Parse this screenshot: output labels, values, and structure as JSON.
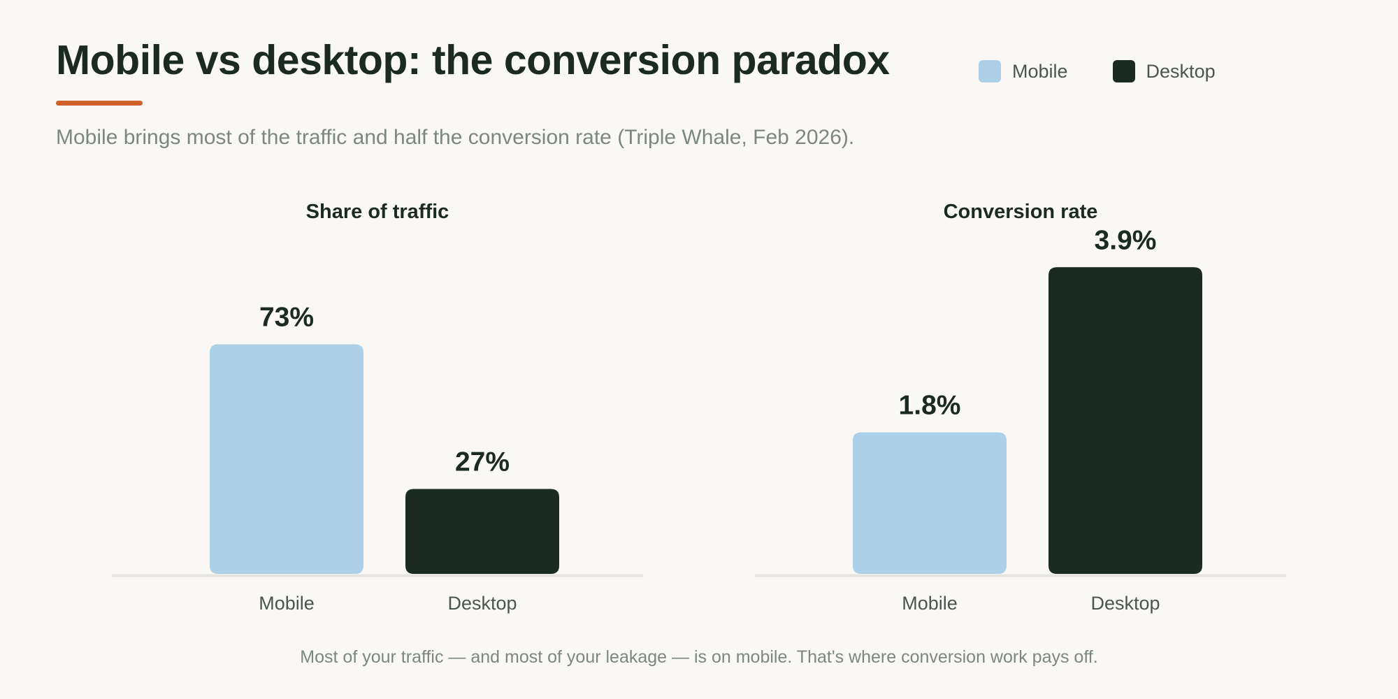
{
  "title": "Mobile vs desktop: the conversion paradox",
  "subtitle": "Mobile brings most of the traffic and half the conversion rate (Triple Whale, Feb 2026).",
  "footnote": "Most of your traffic — and most of your leakage — is on mobile. That's where conversion work pays off.",
  "colors": {
    "accent": "#d0602a",
    "mobile": "#abd0e8",
    "desktop": "#1c2a24",
    "baseline": "#e6e4df"
  },
  "legend": {
    "position": "top-right",
    "items": [
      {
        "label": "Mobile",
        "color": "#abd0e8"
      },
      {
        "label": "Desktop",
        "color": "#1c2a24"
      }
    ]
  },
  "chart_data": [
    {
      "type": "bar",
      "title": "Share of traffic",
      "categories": [
        "Mobile",
        "Desktop"
      ],
      "values": [
        73,
        27
      ],
      "value_labels": [
        "73%",
        "27%"
      ],
      "ylim": [
        0,
        100
      ],
      "grid": false
    },
    {
      "type": "bar",
      "title": "Conversion rate",
      "categories": [
        "Mobile",
        "Desktop"
      ],
      "values": [
        1.8,
        3.9
      ],
      "value_labels": [
        "1.8%",
        "3.9%"
      ],
      "ylim": [
        0,
        4.0
      ],
      "grid": false
    }
  ]
}
